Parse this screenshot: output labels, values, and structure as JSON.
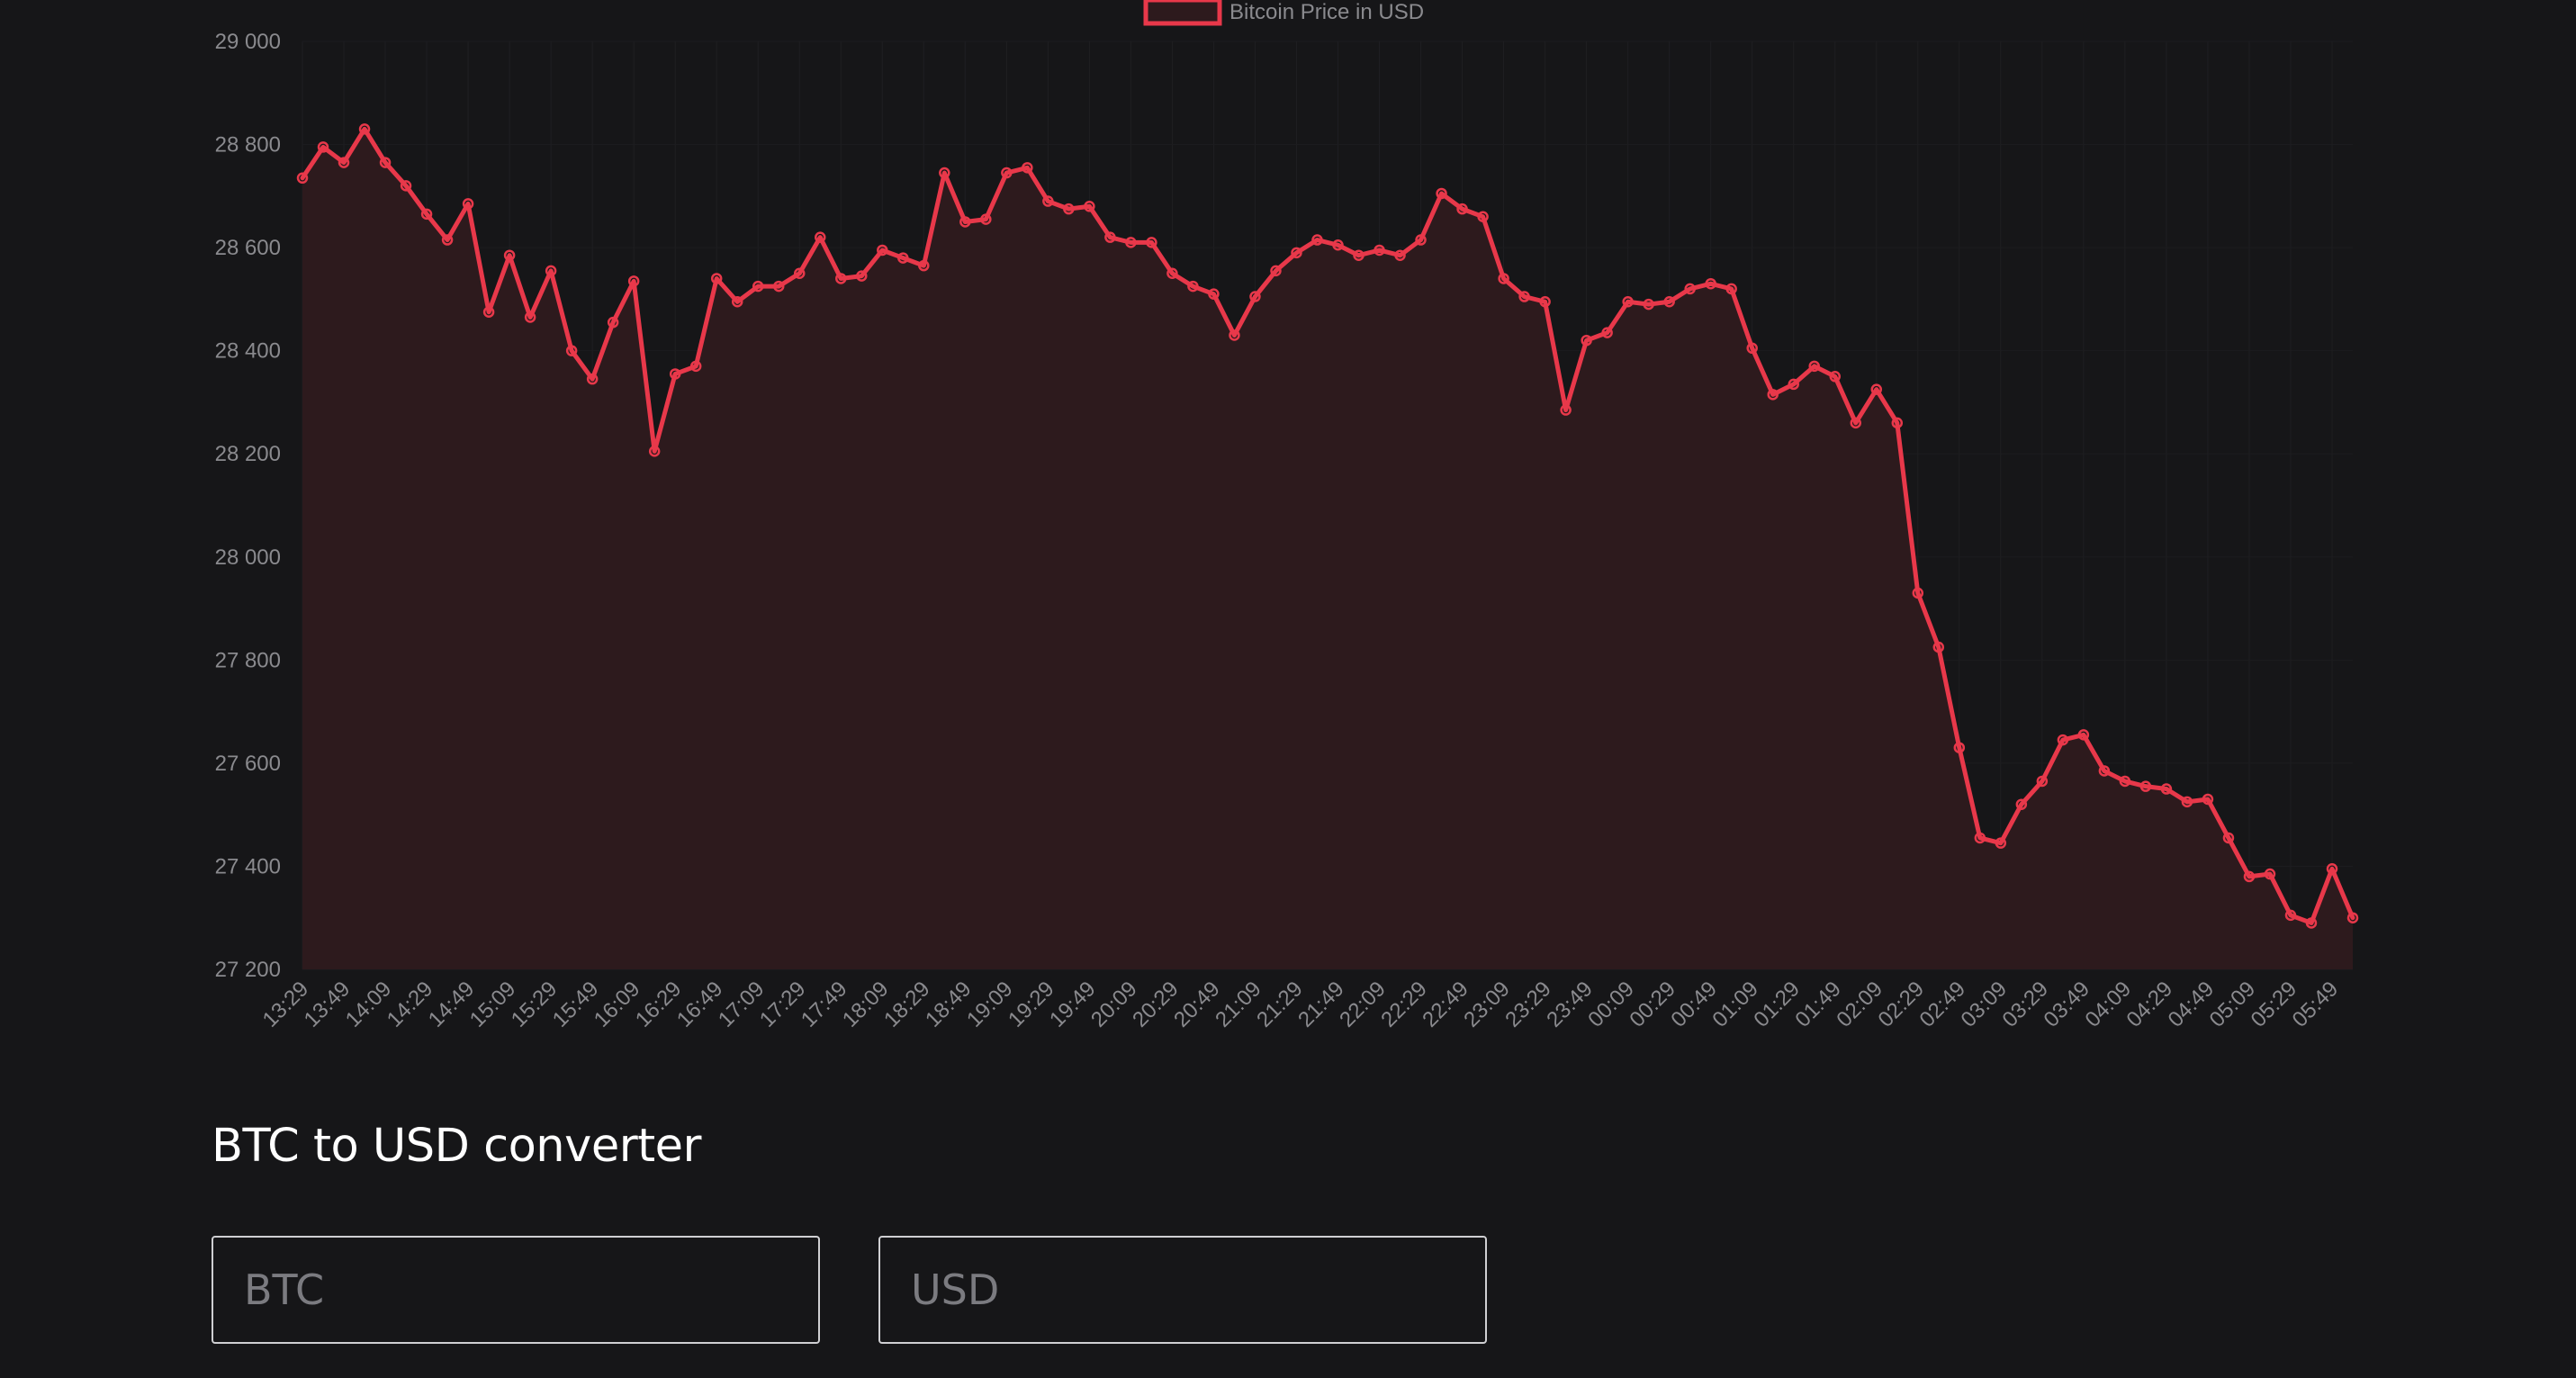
{
  "chart_data": {
    "type": "line",
    "title": "",
    "xlabel": "",
    "ylabel": "",
    "ylim": [
      27200,
      29000
    ],
    "yticks": [
      27200,
      27400,
      27600,
      27800,
      28000,
      28200,
      28400,
      28600,
      28800,
      29000
    ],
    "ytick_labels": [
      "27 200",
      "27 400",
      "27 600",
      "27 800",
      "28 000",
      "28 200",
      "28 400",
      "28 600",
      "28 800",
      "29 000"
    ],
    "x_labels_shown": [
      "13:29",
      "13:49",
      "14:09",
      "14:29",
      "14:49",
      "15:09",
      "15:29",
      "15:49",
      "16:09",
      "16:29",
      "16:49",
      "17:09",
      "17:29",
      "17:49",
      "18:09",
      "18:29",
      "18:49",
      "19:09",
      "19:29",
      "19:49",
      "20:09",
      "20:29",
      "20:49",
      "21:09",
      "21:29",
      "21:49",
      "22:09",
      "22:29",
      "22:49",
      "23:09",
      "23:29",
      "23:49",
      "00:09",
      "00:29",
      "00:49",
      "01:09",
      "01:29",
      "01:49",
      "02:09",
      "02:29",
      "02:49",
      "03:09",
      "03:29",
      "03:49",
      "04:09",
      "04:29",
      "04:49",
      "05:09",
      "05:29",
      "05:49"
    ],
    "label_every": 2,
    "legend_position": "top-center",
    "grid": true,
    "series": [
      {
        "name": "Bitcoin Price in USD",
        "color": "#e8384a",
        "fill": "#2d1a1d",
        "values": [
          28735,
          28795,
          28765,
          28830,
          28765,
          28720,
          28665,
          28615,
          28685,
          28475,
          28585,
          28465,
          28555,
          28400,
          28345,
          28455,
          28535,
          28205,
          28355,
          28370,
          28540,
          28495,
          28525,
          28525,
          28550,
          28620,
          28540,
          28545,
          28595,
          28580,
          28565,
          28745,
          28650,
          28655,
          28745,
          28755,
          28690,
          28675,
          28680,
          28620,
          28610,
          28610,
          28550,
          28525,
          28510,
          28430,
          28505,
          28555,
          28590,
          28615,
          28605,
          28585,
          28595,
          28585,
          28615,
          28705,
          28675,
          28660,
          28540,
          28505,
          28495,
          28285,
          28420,
          28435,
          28495,
          28490,
          28495,
          28520,
          28530,
          28520,
          28405,
          28315,
          28335,
          28370,
          28350,
          28260,
          28325,
          28260,
          27930,
          27825,
          27630,
          27455,
          27445,
          27520,
          27565,
          27645,
          27655,
          27585,
          27565,
          27555,
          27550,
          27525,
          27530,
          27455,
          27380,
          27385,
          27305,
          27290,
          27395,
          27300
        ]
      }
    ]
  },
  "converter": {
    "title": "BTC to USD converter",
    "btc_placeholder": "BTC",
    "usd_placeholder": "USD"
  }
}
